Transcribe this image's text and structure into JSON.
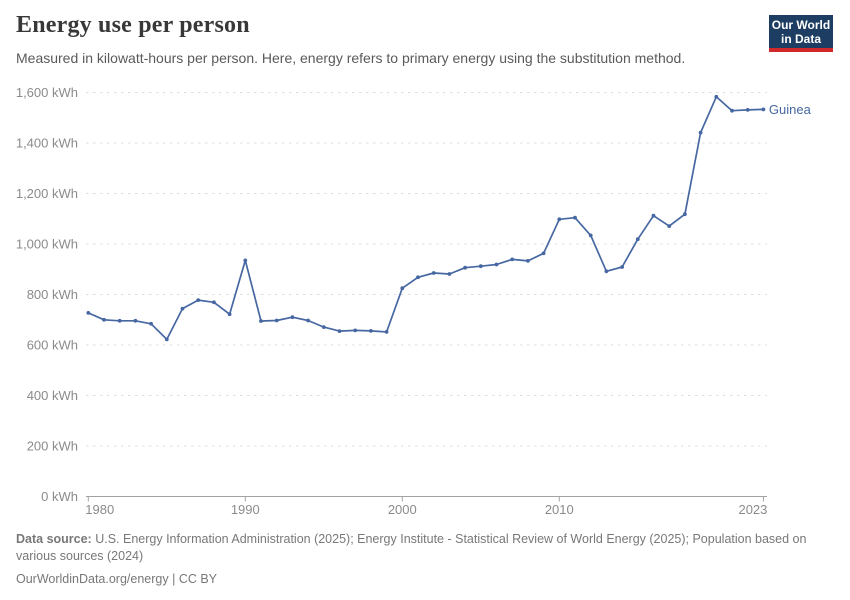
{
  "header": {
    "title": "Energy use per person",
    "subtitle": "Measured in kilowatt-hours per person. Here, energy refers to primary energy using the substitution method.",
    "logo_line1": "Our World",
    "logo_line2": "in Data"
  },
  "chart_data": {
    "type": "line",
    "title": "Energy use per person",
    "entity_label": "Guinea",
    "unit": "kWh",
    "xlabel": "",
    "ylabel": "",
    "ylim": [
      0,
      1600
    ],
    "xlim": [
      1980,
      2023
    ],
    "grid": "horizontal-dashed",
    "legend_position": "end-of-line-label",
    "x": [
      1980,
      1981,
      1982,
      1983,
      1984,
      1985,
      1986,
      1987,
      1988,
      1989,
      1990,
      1991,
      1992,
      1993,
      1994,
      1995,
      1996,
      1997,
      1998,
      1999,
      2000,
      2001,
      2002,
      2003,
      2004,
      2005,
      2006,
      2007,
      2008,
      2009,
      2010,
      2011,
      2012,
      2013,
      2014,
      2015,
      2016,
      2017,
      2018,
      2019,
      2020,
      2021,
      2022,
      2023
    ],
    "values": [
      727,
      700,
      696,
      696,
      684,
      622,
      744,
      778,
      769,
      722,
      935,
      695,
      697,
      710,
      697,
      671,
      655,
      658,
      656,
      652,
      825,
      868,
      885,
      881,
      906,
      912,
      919,
      939,
      933,
      963,
      1098,
      1104,
      1034,
      892,
      909,
      1019,
      1112,
      1071,
      1118,
      1441,
      1583,
      1528,
      1531,
      1533
    ],
    "y_ticks": [
      {
        "value": 0,
        "label": "0 kWh"
      },
      {
        "value": 200,
        "label": "200 kWh"
      },
      {
        "value": 400,
        "label": "400 kWh"
      },
      {
        "value": 600,
        "label": "600 kWh"
      },
      {
        "value": 800,
        "label": "800 kWh"
      },
      {
        "value": 1000,
        "label": "1,000 kWh"
      },
      {
        "value": 1200,
        "label": "1,200 kWh"
      },
      {
        "value": 1400,
        "label": "1,400 kWh"
      },
      {
        "value": 1600,
        "label": "1,600 kWh"
      }
    ],
    "x_ticks": [
      {
        "year": 1980,
        "label": "1980"
      },
      {
        "year": 1990,
        "label": "1990"
      },
      {
        "year": 2000,
        "label": "2000"
      },
      {
        "year": 2010,
        "label": "2010"
      },
      {
        "year": 2023,
        "label": "2023"
      }
    ]
  },
  "footer": {
    "source_label": "Data source:",
    "sources": "U.S. Energy Information Administration (2025); Energy Institute - Statistical Review of World Energy (2025); Population based on various sources (2024)",
    "url": "OurWorldinData.org/energy",
    "license": " | CC BY"
  },
  "colors": {
    "line": "#4667a1",
    "entity_label": "#4667a1",
    "gridline": "#dcdcdc",
    "axis": "#a3a3a3",
    "tick_label": "#8b8b8b",
    "logo_navy": "#1d3d63",
    "logo_red": "#d0282b"
  }
}
